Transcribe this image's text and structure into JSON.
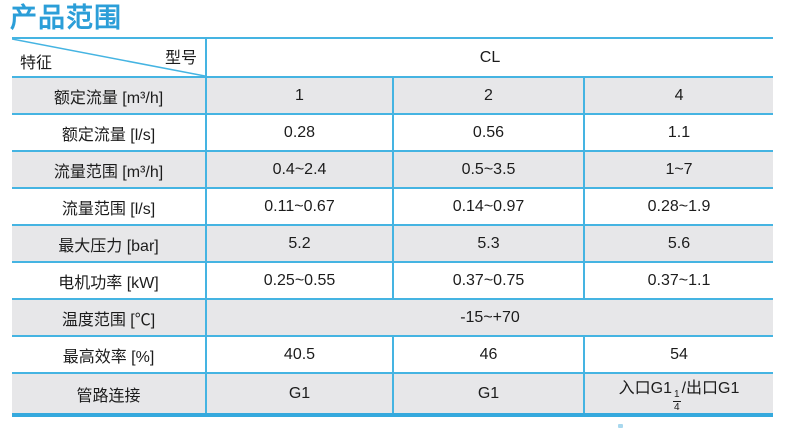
{
  "page_title": "产品范围",
  "colors": {
    "title_blue": "#2b9ed8",
    "border_cyan": "#45b4e2",
    "bottom_border_blue": "#35a9dd",
    "row_gray": "#e7e7e9",
    "text": "#1c1c1c"
  },
  "table": {
    "corner": {
      "top_right": "型号",
      "bottom_left": "特征"
    },
    "model_header": "CL",
    "rows": [
      {
        "label": "额定流量 [m³/h]",
        "values": [
          "1",
          "2",
          "4"
        ]
      },
      {
        "label": "额定流量 [l/s]",
        "values": [
          "0.28",
          "0.56",
          "1.1"
        ]
      },
      {
        "label": "流量范围 [m³/h]",
        "values": [
          "0.4~2.4",
          "0.5~3.5",
          "1~7"
        ]
      },
      {
        "label": "流量范围 [l/s]",
        "values": [
          "0.11~0.67",
          "0.14~0.97",
          "0.28~1.9"
        ]
      },
      {
        "label": "最大压力 [bar]",
        "values": [
          "5.2",
          "5.3",
          "5.6"
        ]
      },
      {
        "label": "电机功率 [kW]",
        "values": [
          "0.25~0.55",
          "0.37~0.75",
          "0.37~1.1"
        ]
      },
      {
        "label": "温度范围 [℃]",
        "colspan": 3,
        "values": [
          "-15~+70"
        ]
      },
      {
        "label": "最高效率 [%]",
        "values": [
          "40.5",
          "46",
          "54"
        ]
      },
      {
        "label": "管路连接",
        "values": [
          "G1",
          "G1",
          {
            "pre": "入口G1",
            "numerator": "1",
            "denominator": "4",
            "post": "/出口G1"
          }
        ]
      }
    ]
  }
}
